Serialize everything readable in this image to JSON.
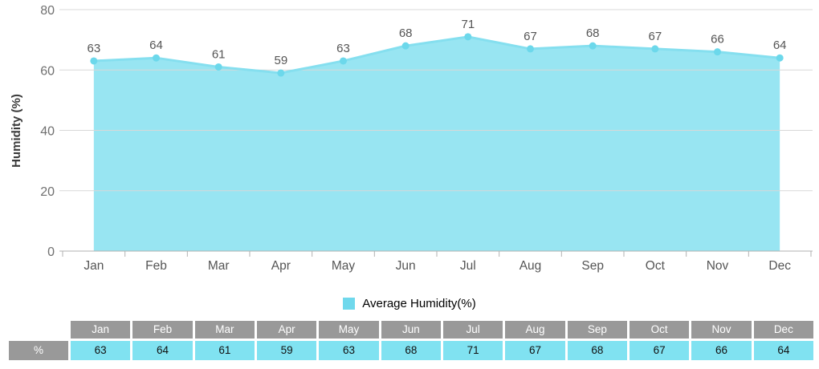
{
  "chart_data": {
    "type": "area",
    "title": "",
    "categories": [
      "Jan",
      "Feb",
      "Mar",
      "Apr",
      "May",
      "Jun",
      "Jul",
      "Aug",
      "Sep",
      "Oct",
      "Nov",
      "Dec"
    ],
    "series": [
      {
        "name": "Average Humidity(%)",
        "values": [
          63,
          64,
          61,
          59,
          63,
          68,
          71,
          67,
          68,
          67,
          66,
          64
        ]
      }
    ],
    "xlabel": "",
    "ylabel": "Humidity (%)",
    "ylim": [
      0,
      80
    ],
    "yticks": [
      0,
      20,
      40,
      60,
      80
    ],
    "grid": true,
    "legend_position": "bottom",
    "data_labels_shown": true
  },
  "legend": {
    "label": "Average Humidity(%)"
  },
  "table": {
    "corner": "",
    "row_header": "%",
    "columns": [
      "Jan",
      "Feb",
      "Mar",
      "Apr",
      "May",
      "Jun",
      "Jul",
      "Aug",
      "Sep",
      "Oct",
      "Nov",
      "Dec"
    ],
    "values": [
      "63",
      "64",
      "61",
      "59",
      "63",
      "68",
      "71",
      "67",
      "68",
      "67",
      "66",
      "64"
    ]
  },
  "colors": {
    "area_fill": "#98E5F2",
    "line": "#85DFEF",
    "marker": "#6CD8EB",
    "legend_swatch": "#6FD8EC",
    "gridline": "#D8D8D8",
    "axis": "#B2B2B2",
    "tick_label": "#707070",
    "month_label": "#555555",
    "data_label": "#555555",
    "ylabel_color": "#3A3A3A",
    "table_header_bg": "#999999",
    "table_header_text": "#FFFFFF",
    "table_cell_bg": "#80E2F1",
    "table_cell_text": "#111111"
  }
}
